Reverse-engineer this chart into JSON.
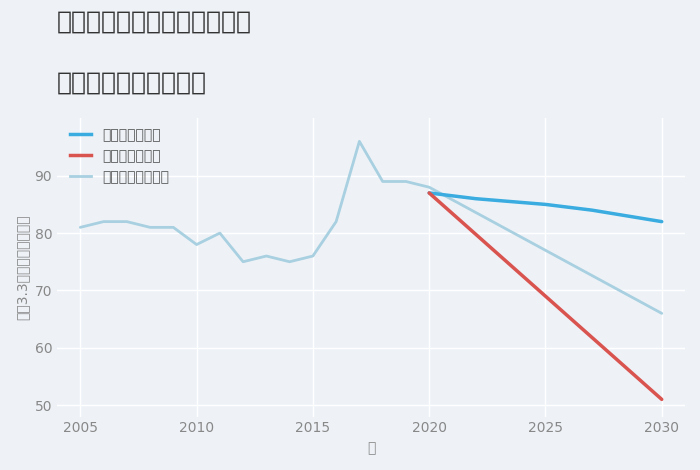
{
  "title_line1": "兵庫県たつの市御津町苅屋の",
  "title_line2": "中古戸建ての価格推移",
  "xlabel": "年",
  "ylabel": "坪（3.3㎡）単価（万円）",
  "background_color": "#eef2f7",
  "plot_bg_color": "#eef2f7",
  "ylim": [
    48,
    100
  ],
  "xlim": [
    2004,
    2031
  ],
  "yticks": [
    50,
    60,
    70,
    80,
    90
  ],
  "xticks": [
    2005,
    2010,
    2015,
    2020,
    2025,
    2030
  ],
  "normal_scenario": {
    "x": [
      2005,
      2006,
      2007,
      2008,
      2009,
      2010,
      2011,
      2012,
      2013,
      2014,
      2015,
      2016,
      2017,
      2018,
      2019,
      2020,
      2025,
      2030
    ],
    "y": [
      81,
      82,
      82,
      81,
      81,
      78,
      80,
      75,
      76,
      75,
      76,
      82,
      96,
      89,
      89,
      88,
      77,
      66
    ],
    "color": "#a8d0e0",
    "label": "ノーマルシナリオ",
    "linewidth": 2.0
  },
  "good_scenario": {
    "x": [
      2020,
      2022,
      2025,
      2027,
      2030
    ],
    "y": [
      87,
      86,
      85,
      84,
      82
    ],
    "color": "#3aace0",
    "label": "グッドシナリオ",
    "linewidth": 2.5
  },
  "bad_scenario": {
    "x": [
      2020,
      2030
    ],
    "y": [
      87,
      51
    ],
    "color": "#d9534f",
    "label": "バッドシナリオ",
    "linewidth": 2.5
  },
  "title_fontsize": 18,
  "legend_fontsize": 10,
  "tick_fontsize": 10,
  "axis_label_fontsize": 10,
  "title_color": "#333333",
  "tick_color": "#888888",
  "grid_color": "#ffffff",
  "legend_label_color": "#555555"
}
